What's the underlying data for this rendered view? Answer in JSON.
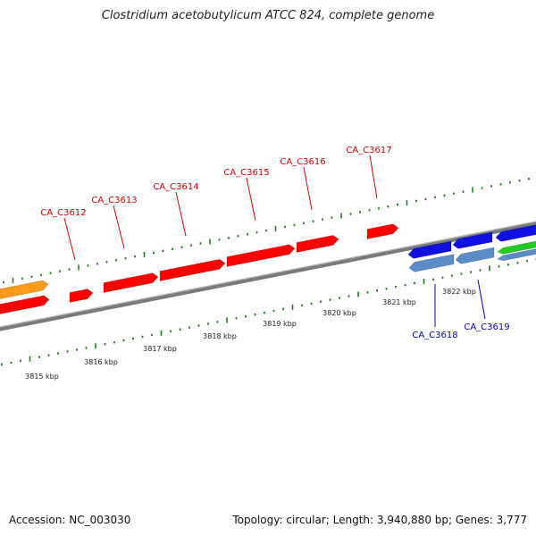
{
  "title": "Clostridium acetobutylicum ATCC 824, complete genome",
  "footer": {
    "accession": "Accession: NC_003030",
    "summary": "Topology: circular; Length: 3,940,880 bp; Genes: 3,777"
  },
  "colors": {
    "forward_gene": "#ff0000",
    "reverse_gene_dark": "#1010e0",
    "reverse_gene_light": "#5c8cc8",
    "green_gene": "#22cc22",
    "orange_gene": "#ff9a1a",
    "tick": "#1f7f1f",
    "backbone": "#7a7a7a",
    "label_red": "#dd0000",
    "label_blue": "#0000cc"
  },
  "gene_labels": [
    {
      "name": "CA_C3612",
      "strand": "forward"
    },
    {
      "name": "CA_C3613",
      "strand": "forward"
    },
    {
      "name": "CA_C3614",
      "strand": "forward"
    },
    {
      "name": "CA_C3615",
      "strand": "forward"
    },
    {
      "name": "CA_C3616",
      "strand": "forward"
    },
    {
      "name": "CA_C3617",
      "strand": "forward"
    },
    {
      "name": "CA_C3618",
      "strand": "reverse"
    },
    {
      "name": "CA_C3619",
      "strand": "reverse"
    }
  ],
  "kbp_labels": [
    "3815 kbp",
    "3816 kbp",
    "3817 kbp",
    "3818 kbp",
    "3819 kbp",
    "3820 kbp",
    "3821 kbp",
    "3822 kbp"
  ]
}
